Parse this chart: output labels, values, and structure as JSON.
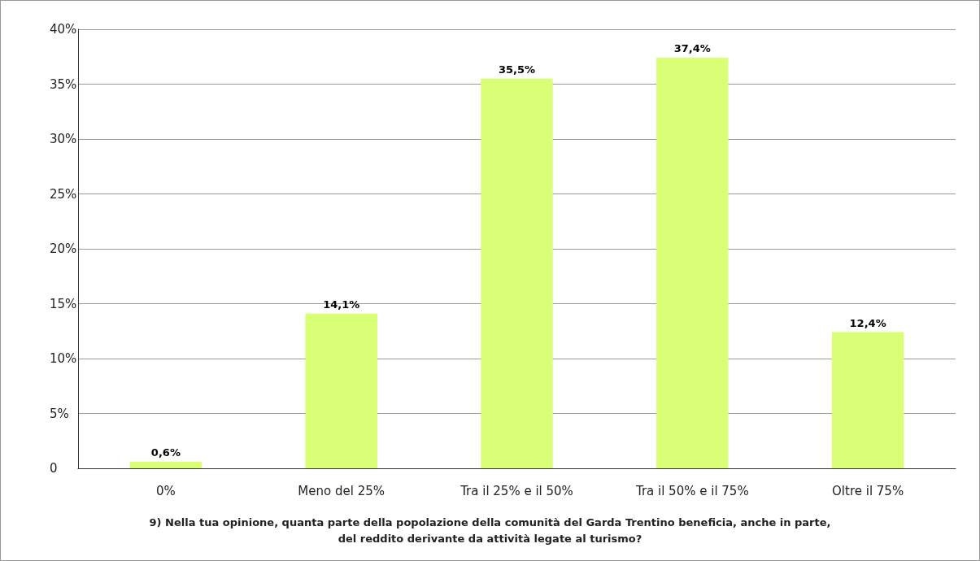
{
  "chart_data": {
    "type": "bar",
    "title": "9) Nella tua opinione, quanta parte della popolazione della comunità del Garda Trentino beneficia, anche in parte,\ndel reddito derivante da attività legate al turismo?",
    "categories": [
      "0%",
      "Meno del 25%",
      "Tra il 25% e il 50%",
      "Tra il 50% e il 75%",
      "Oltre il 75%"
    ],
    "values": [
      0.6,
      14.1,
      35.5,
      37.4,
      12.4
    ],
    "value_labels": [
      "0,6%",
      "14,1%",
      "35,5%",
      "37,4%",
      "12,4%"
    ],
    "color": "#d9ff77",
    "ylim": [
      0,
      40
    ],
    "yticks": [
      {
        "value": 0,
        "label": "0"
      },
      {
        "value": 5,
        "label": "5%"
      },
      {
        "value": 10,
        "label": "10%"
      },
      {
        "value": 15,
        "label": "15%"
      },
      {
        "value": 20,
        "label": "20%"
      },
      {
        "value": 25,
        "label": "25%"
      },
      {
        "value": 30,
        "label": "30%"
      },
      {
        "value": 35,
        "label": "35%"
      },
      {
        "value": 40,
        "label": "40%"
      }
    ],
    "grid": "y"
  }
}
